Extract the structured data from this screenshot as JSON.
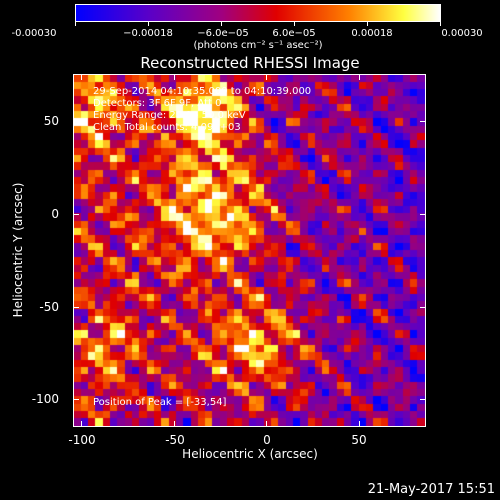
{
  "colorbar": {
    "ticks": [
      "-0.00030",
      "−0.00018",
      "−6.0e−05",
      "6.0e−05",
      "0.00018",
      "0.00030"
    ],
    "units": "(photons cm⁻² s⁻¹ asec⁻²)"
  },
  "title": "Reconstructed RHESSI Image",
  "annotations": {
    "line1": "29-Sep-2014 04:10:35.000 to 04:10:39.000",
    "line2": "Detectors: 3F 6F 9F, Att 0",
    "line3": "Energy Range: 25.0 - 50.0 keV",
    "line4": "Clean    Total counts: 4.09E+03",
    "peak": "Position of Peak = [-33,54]"
  },
  "axes": {
    "xlabel": "Heliocentric X (arcsec)",
    "ylabel": "Heliocentric Y (arcsec)",
    "xticks": [
      "-100",
      "-50",
      "0",
      "50"
    ],
    "yticks": [
      "50",
      "0",
      "-50",
      "-100"
    ]
  },
  "timestamp": "21-May-2017 15:51",
  "chart_data": {
    "type": "heatmap",
    "title": "Reconstructed RHESSI Image",
    "xlabel": "Heliocentric X (arcsec)",
    "ylabel": "Heliocentric Y (arcsec)",
    "xlim": [
      -104,
      86
    ],
    "ylim": [
      -116,
      74
    ],
    "color_range": [
      -0.0003,
      0.0003
    ],
    "colormap": [
      "#0000ff",
      "#8000a0",
      "#c00000",
      "#ff6000",
      "#ffff00",
      "#ffffff"
    ],
    "peak_position": [
      -33,
      54
    ],
    "grid_resolution": 48
  }
}
